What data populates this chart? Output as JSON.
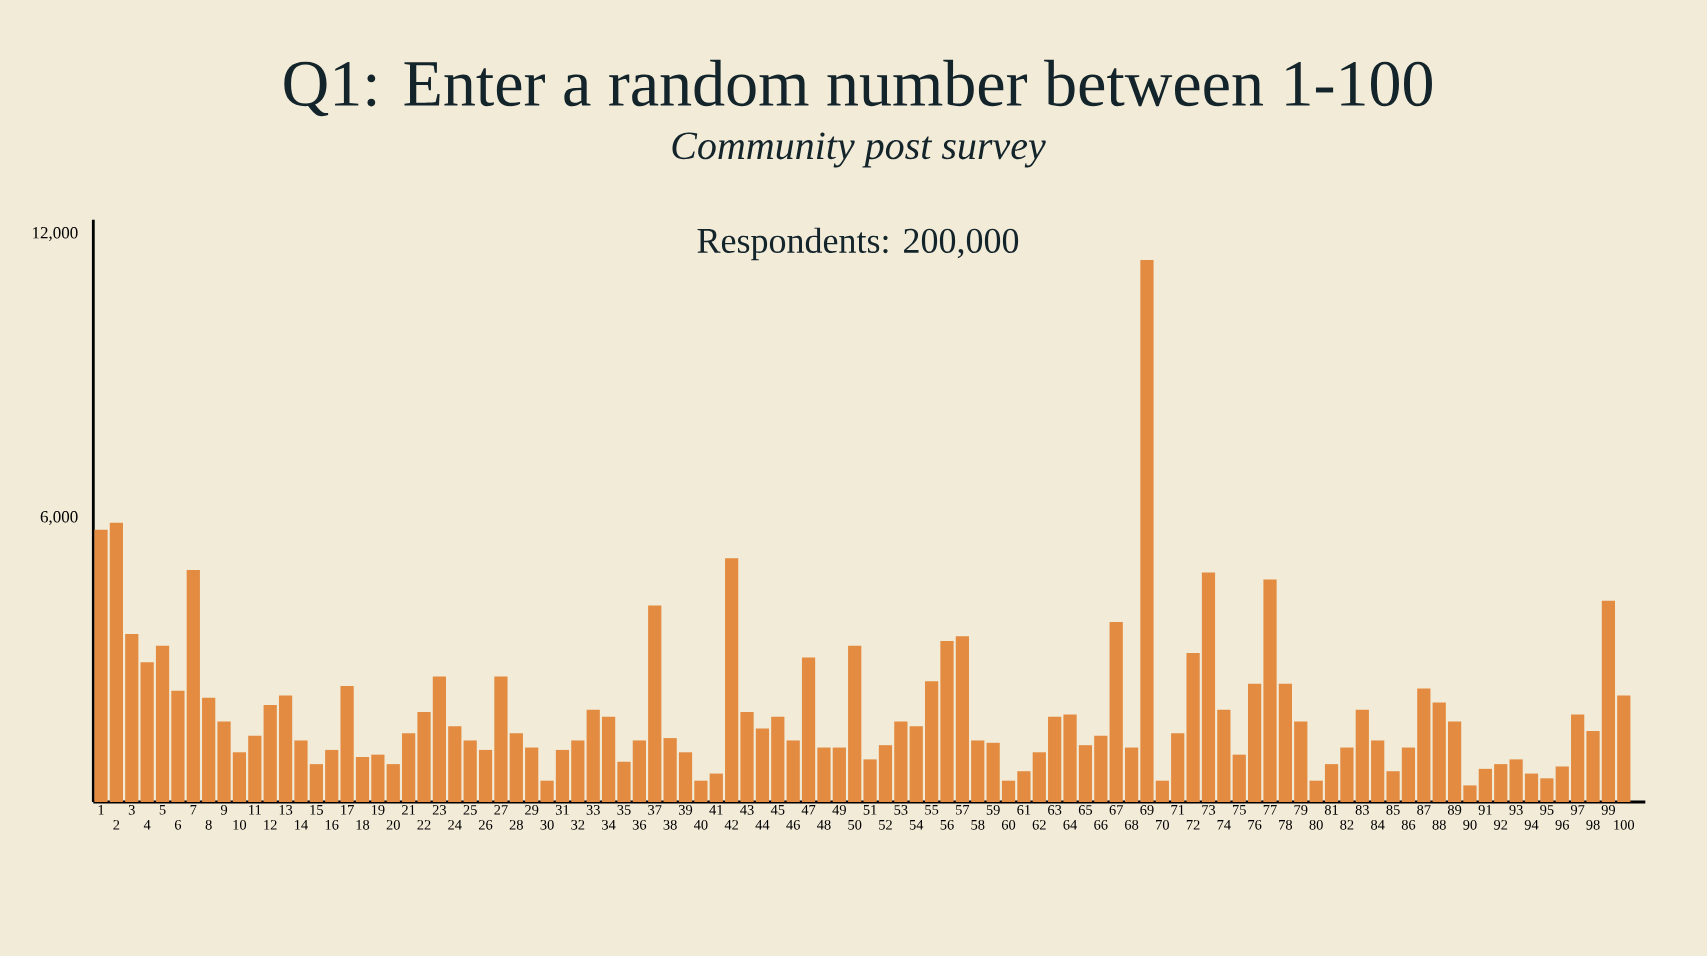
{
  "chart_data": {
    "type": "bar",
    "title": "Q1: Enter a random number between 1-100",
    "subtitle": "*Community post survey*",
    "annotations": [
      "Respondents: 200,000"
    ],
    "categories": [
      "1",
      "2",
      "3",
      "4",
      "5",
      "6",
      "7",
      "8",
      "9",
      "10",
      "11",
      "12",
      "13",
      "14",
      "15",
      "16",
      "17",
      "18",
      "19",
      "20",
      "21",
      "22",
      "23",
      "24",
      "25",
      "26",
      "27",
      "28",
      "29",
      "30",
      "31",
      "32",
      "33",
      "34",
      "35",
      "36",
      "37",
      "38",
      "39",
      "40",
      "41",
      "42",
      "43",
      "44",
      "45",
      "46",
      "47",
      "48",
      "49",
      "50",
      "51",
      "52",
      "53",
      "54",
      "55",
      "56",
      "57",
      "58",
      "59",
      "60",
      "61",
      "62",
      "63",
      "64",
      "65",
      "66",
      "67",
      "68",
      "69",
      "70",
      "71",
      "72",
      "73",
      "74",
      "75",
      "76",
      "77",
      "78",
      "79",
      "80",
      "81",
      "82",
      "83",
      "84",
      "85",
      "86",
      "87",
      "88",
      "89",
      "90",
      "91",
      "92",
      "93",
      "94",
      "95",
      "96",
      "97",
      "98",
      "99",
      "100"
    ],
    "values": [
      5750,
      5900,
      3550,
      2950,
      3300,
      2350,
      4900,
      2200,
      1700,
      1050,
      1400,
      2050,
      2250,
      1300,
      800,
      1100,
      2450,
      950,
      1000,
      800,
      1450,
      1900,
      2650,
      1600,
      1300,
      1100,
      2650,
      1450,
      1150,
      450,
      1100,
      1300,
      1950,
      1800,
      850,
      1300,
      4150,
      1350,
      1050,
      450,
      600,
      5150,
      1900,
      1550,
      1800,
      1300,
      3050,
      1150,
      1150,
      3300,
      900,
      1200,
      1700,
      1600,
      2550,
      3400,
      3500,
      1300,
      1250,
      450,
      650,
      1050,
      1800,
      1850,
      1200,
      1400,
      3800,
      1150,
      11450,
      450,
      1450,
      3150,
      4850,
      1950,
      1000,
      2500,
      4700,
      2500,
      1700,
      450,
      800,
      1150,
      1950,
      1300,
      650,
      1150,
      2400,
      2100,
      1700,
      350,
      700,
      800,
      900,
      600,
      500,
      750,
      1850,
      1500,
      4250,
      2250
    ],
    "color": "#e38b40",
    "ylim": [
      0,
      12300
    ],
    "yticks": [
      {
        "value": 6000,
        "label": "6,000"
      },
      {
        "value": 12000,
        "label": "12,000"
      }
    ]
  }
}
